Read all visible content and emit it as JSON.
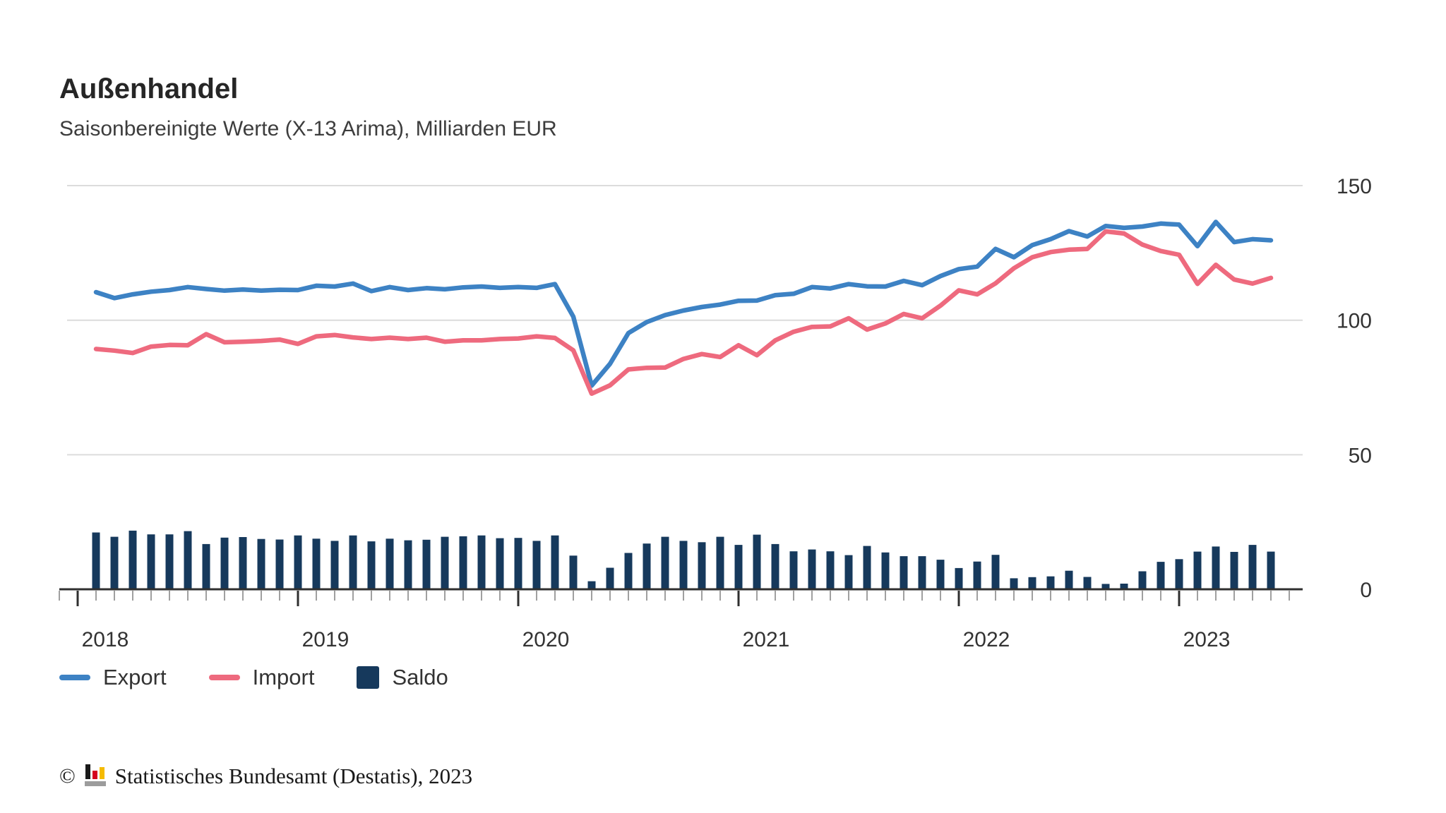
{
  "title": "Außenhandel",
  "subtitle": "Saisonbereinigte Werte (X-13 Arima), Milliarden EUR",
  "legend": {
    "export_label": "Export",
    "import_label": "Import",
    "saldo_label": "Saldo"
  },
  "footer": {
    "copyright_symbol": "©",
    "source_text": "Statistisches Bundesamt (Destatis), 2023",
    "logo_icon": "destatis-bars-logo",
    "logo_colors": {
      "bar1": "#1a1a1a",
      "bar2": "#d5001f",
      "bar3": "#f5bb00",
      "base": "#9c9c9c"
    }
  },
  "colors": {
    "export": "#3d82c4",
    "import": "#ee6a7e",
    "saldo": "#16395c",
    "grid": "#dcdcdc",
    "axis": "#2f2f2f",
    "minor_tick": "#a0a0a0",
    "label": "#333333"
  },
  "chart_data": {
    "type": "line+bar",
    "title": "Außenhandel",
    "subtitle": "Saisonbereinigte Werte (X-13 Arima), Milliarden EUR",
    "x_unit": "month",
    "x_start": "2018-01",
    "x_end": "2023-05",
    "x_tick_labels": [
      "2018",
      "2019",
      "2020",
      "2021",
      "2022",
      "2023"
    ],
    "ylabel": "Milliarden EUR",
    "ylim": [
      0,
      150
    ],
    "yticks": [
      0,
      50,
      100,
      150
    ],
    "grid": true,
    "legend_position": "bottom",
    "series": [
      {
        "name": "Export",
        "type": "line",
        "color": "#3d82c4",
        "values": [
          110.4,
          108.2,
          109.6,
          110.6,
          111.2,
          112.3,
          111.6,
          111.0,
          111.4,
          111.0,
          111.3,
          111.2,
          112.8,
          112.5,
          113.6,
          110.8,
          112.3,
          111.2,
          111.9,
          111.5,
          112.2,
          112.5,
          112.0,
          112.3,
          112.0,
          113.4,
          101.3,
          75.7,
          83.8,
          95.2,
          99.3,
          101.9,
          103.6,
          104.9,
          105.8,
          107.2,
          107.3,
          109.3,
          109.8,
          112.3,
          111.8,
          113.4,
          112.6,
          112.5,
          114.6,
          113.0,
          116.4,
          119.0,
          119.9,
          126.5,
          123.4,
          127.9,
          130.1,
          133.1,
          131.1,
          135.0,
          134.3,
          134.8,
          135.9,
          135.5,
          127.5,
          136.5,
          129.0,
          130.1,
          129.7
        ]
      },
      {
        "name": "Import",
        "type": "line",
        "color": "#ee6a7e",
        "values": [
          89.3,
          88.7,
          87.8,
          90.2,
          90.8,
          90.7,
          94.8,
          91.8,
          92.0,
          92.3,
          92.8,
          91.2,
          94.0,
          94.5,
          93.6,
          93.0,
          93.5,
          93.0,
          93.5,
          92.0,
          92.5,
          92.5,
          93.0,
          93.2,
          94.0,
          93.4,
          88.8,
          72.7,
          75.8,
          81.7,
          82.3,
          82.4,
          85.6,
          87.4,
          86.3,
          90.7,
          87.0,
          92.5,
          95.7,
          97.5,
          97.7,
          100.7,
          96.5,
          98.8,
          102.3,
          100.7,
          105.4,
          111.1,
          109.6,
          113.7,
          119.3,
          123.4,
          125.3,
          126.2,
          126.5,
          133.0,
          132.2,
          128.1,
          125.7,
          124.3,
          113.5,
          120.6,
          115.1,
          113.6,
          115.7
        ]
      },
      {
        "name": "Saldo",
        "type": "bar",
        "color": "#16395c",
        "values": [
          21.1,
          19.5,
          21.8,
          20.4,
          20.4,
          21.6,
          16.8,
          19.2,
          19.4,
          18.7,
          18.5,
          20.0,
          18.8,
          18.0,
          20.0,
          17.8,
          18.8,
          18.2,
          18.4,
          19.5,
          19.7,
          20.0,
          19.0,
          19.1,
          18.0,
          20.0,
          12.5,
          3.0,
          8.0,
          13.5,
          17.0,
          19.5,
          18.0,
          17.5,
          19.5,
          16.5,
          20.3,
          16.8,
          14.1,
          14.8,
          14.1,
          12.7,
          16.1,
          13.7,
          12.3,
          12.3,
          11.0,
          7.9,
          10.3,
          12.8,
          4.1,
          4.5,
          4.8,
          6.9,
          4.6,
          2.0,
          2.1,
          6.7,
          10.2,
          11.2,
          14.0,
          15.9,
          13.9,
          16.5,
          14.0
        ]
      }
    ]
  }
}
